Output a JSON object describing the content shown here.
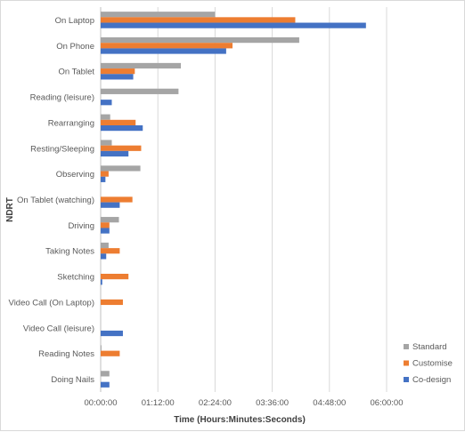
{
  "chart_data": {
    "type": "bar",
    "orientation": "horizontal",
    "title": "",
    "xlabel": "Time (Hours:Minutes:Seconds)",
    "ylabel": "NDRT",
    "categories": [
      "On Laptop",
      "On Phone",
      "On Tablet",
      "Reading (leisure)",
      "Rearranging",
      "Resting/Sleeping",
      "Observing",
      "On Tablet (watching)",
      "Driving",
      "Taking Notes",
      "Sketching",
      "Video Call (On Laptop)",
      "Video Call (leisure)",
      "Reading Notes",
      "Doing Nails"
    ],
    "series": [
      {
        "name": "Standard",
        "color": "#A5A5A5",
        "values_minutes": [
          144,
          250,
          101,
          98,
          12,
          14,
          50,
          0,
          23,
          10,
          0,
          0,
          0,
          1,
          11
        ]
      },
      {
        "name": "Customise",
        "color": "#ED7D31",
        "values_minutes": [
          245,
          166,
          43,
          0,
          44,
          51,
          10,
          40,
          11,
          24,
          35,
          28,
          0,
          24,
          0
        ]
      },
      {
        "name": "Co-design",
        "color": "#4472C4",
        "values_minutes": [
          334,
          158,
          41,
          14,
          53,
          35,
          6,
          24,
          11,
          7,
          2,
          0,
          28,
          0,
          11
        ]
      }
    ],
    "xticks": [
      "00:00:00",
      "01:12:00",
      "02:24:00",
      "03:36:00",
      "04:48:00",
      "06:00:00"
    ],
    "xlim_minutes": [
      0,
      360
    ],
    "grid": "vertical",
    "legend_position": "bottom-right"
  }
}
